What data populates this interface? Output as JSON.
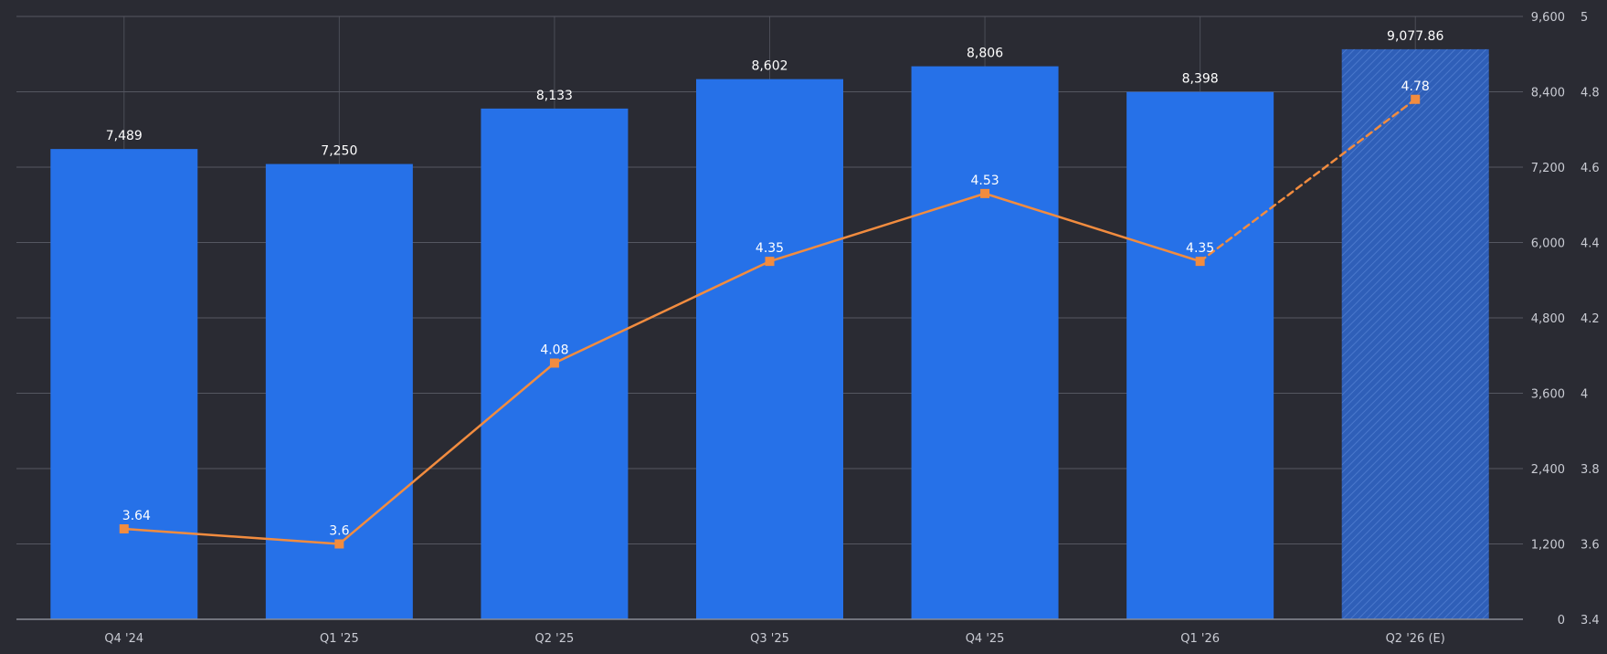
{
  "colors": {
    "background": "#2a2b33",
    "bar": "#2671e8",
    "estimate_bar": "#2f5fb8",
    "line": "#f28c3f",
    "grid": "#555761",
    "text": "#c9cbd3",
    "label": "#ffffff"
  },
  "chart_data": {
    "type": "bar",
    "title": "",
    "xlabel": "",
    "ylabel": "",
    "categories": [
      "Q4 '24",
      "Q1 '25",
      "Q2 '25",
      "Q3 '25",
      "Q4 '25",
      "Q1 '26",
      "Q2 '26 (E)"
    ],
    "estimated": [
      false,
      false,
      false,
      false,
      false,
      false,
      true
    ],
    "series": [
      {
        "type": "bar",
        "axis": "left",
        "values": [
          7489,
          7250,
          8133,
          8602,
          8806,
          8398,
          9077.86
        ],
        "labels": [
          "7,489",
          "7,250",
          "8,133",
          "8,602",
          "8,806",
          "8,398",
          "9,077.86"
        ]
      },
      {
        "type": "line",
        "axis": "right",
        "values": [
          3.64,
          3.6,
          4.08,
          4.35,
          4.53,
          4.35,
          4.78
        ],
        "labels": [
          "3.64",
          "3.6",
          "4.08",
          "4.35",
          "4.53",
          "4.35",
          "4.78"
        ],
        "dashed_from_index": 5
      }
    ],
    "ylim": [
      0,
      9600
    ],
    "y_ticks": [
      0,
      1200,
      2400,
      3600,
      4800,
      6000,
      7200,
      8400,
      9600
    ],
    "y_tick_labels": [
      "0",
      "1,200",
      "2,400",
      "3,600",
      "4,800",
      "6,000",
      "7,200",
      "8,400",
      "9,600"
    ],
    "y2lim": [
      3.4,
      5
    ],
    "y2_ticks": [
      3.4,
      3.6,
      3.8,
      4,
      4.2,
      4.4,
      4.6,
      4.8,
      5
    ],
    "y2_tick_labels": [
      "3.4",
      "3.6",
      "3.8",
      "4",
      "4.2",
      "4.4",
      "4.6",
      "4.8",
      "5"
    ],
    "grid": true,
    "legend": "none"
  }
}
